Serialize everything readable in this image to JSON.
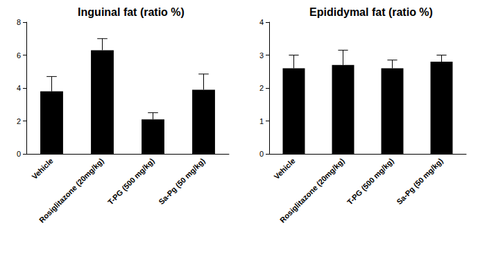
{
  "chart_data": [
    {
      "type": "bar",
      "title": "Inguinal fat (ratio %)",
      "categories": [
        "Vehicle",
        "Rosiglitazone (20mg/kg)",
        "T-PG (500 mg/kg)",
        "Sa-Pg (50 mg/kg)"
      ],
      "values": [
        3.8,
        6.3,
        2.1,
        3.9
      ],
      "errors": [
        0.9,
        0.7,
        0.4,
        0.95
      ],
      "color": "#000000",
      "ylim": [
        0,
        8
      ],
      "yticks": [
        0,
        2,
        4,
        6,
        8
      ],
      "grid": false
    },
    {
      "type": "bar",
      "title": "Epididymal fat (ratio %)",
      "categories": [
        "Vehicle",
        "Rosiglitazone (20mg/kg)",
        "T-PG (500 mg/kg)",
        "Sa-Pg (50 mg/kg)"
      ],
      "values": [
        2.6,
        2.7,
        2.6,
        2.8
      ],
      "errors": [
        0.4,
        0.45,
        0.25,
        0.2
      ],
      "color": "#000000",
      "ylim": [
        0,
        4
      ],
      "yticks": [
        0,
        1,
        2,
        3,
        4
      ],
      "grid": false
    }
  ]
}
